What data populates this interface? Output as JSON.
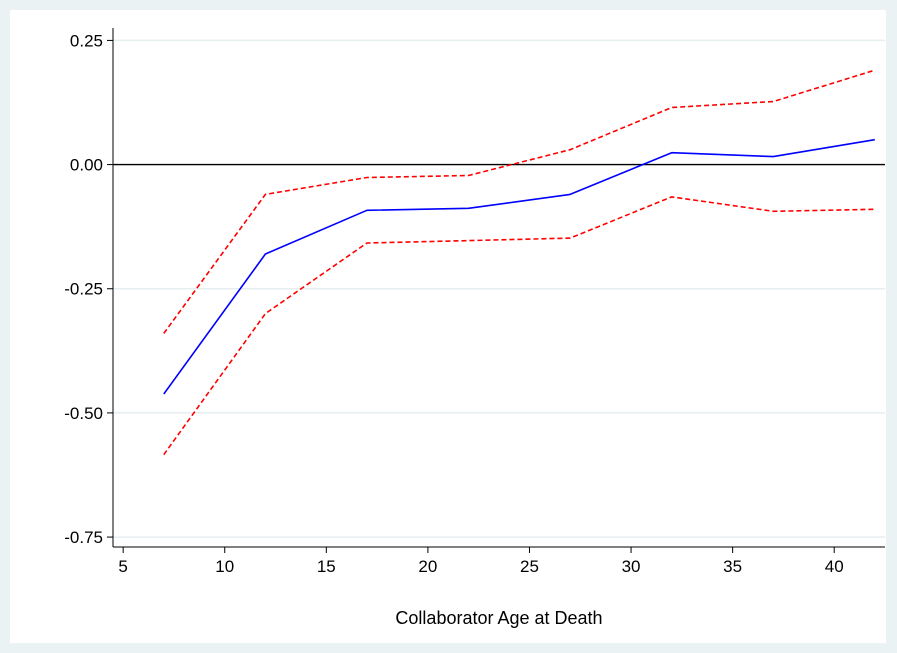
{
  "chart_data": {
    "type": "line",
    "title": "",
    "xlabel": "Collaborator Age at Death",
    "ylabel": "",
    "xlim": [
      4.5,
      42.5
    ],
    "ylim": [
      -0.77,
      0.275
    ],
    "x_ticks": [
      5,
      10,
      15,
      20,
      25,
      30,
      35,
      40
    ],
    "y_ticks": [
      0.25,
      0.0,
      -0.25,
      -0.5,
      -0.75
    ],
    "y_tick_labels": [
      "0.25",
      "0.00",
      "-0.25",
      "-0.50",
      "-0.75"
    ],
    "grid": true,
    "reference_line_y": 0,
    "x": [
      7,
      12,
      17,
      22,
      27,
      32,
      37,
      42
    ],
    "series": [
      {
        "values": [
          -0.462,
          -0.18,
          -0.092,
          -0.088,
          -0.06,
          0.024,
          0.016,
          0.05
        ],
        "color": "#0000ff",
        "style": "solid"
      },
      {
        "values": [
          -0.34,
          -0.06,
          -0.026,
          -0.022,
          0.03,
          0.115,
          0.127,
          0.19
        ],
        "color": "#ff0000",
        "style": "dashed"
      },
      {
        "values": [
          -0.584,
          -0.3,
          -0.158,
          -0.153,
          -0.148,
          -0.065,
          -0.094,
          -0.09
        ],
        "color": "#ff0000",
        "style": "dashed"
      }
    ]
  }
}
